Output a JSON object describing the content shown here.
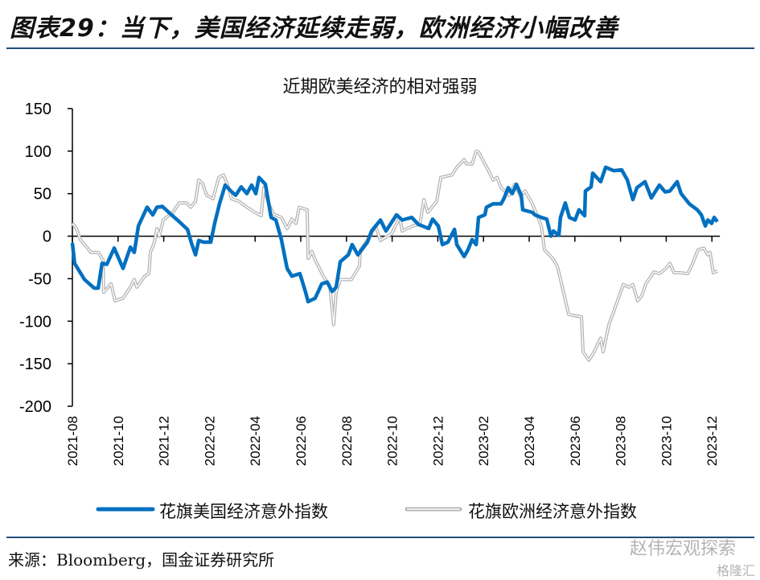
{
  "figure_title": "图表29：当下，美国经济延续走弱，欧洲经济小幅改善",
  "source": "来源：Bloomberg，国金证券研究所",
  "watermark": {
    "text": "赵伟宏观探索",
    "sub": "格隆汇"
  },
  "colors": {
    "us": "#0070c0",
    "eu": "#b4b4b4",
    "rule": "#1f4e79"
  },
  "chart_data": {
    "type": "line",
    "title": "近期欧美经济的相对强弱",
    "xlabel": "",
    "ylabel": "",
    "ylim": [
      -200,
      150
    ],
    "yticks": [
      "150",
      "100",
      "50",
      "0",
      "-50",
      "-100",
      "-150",
      "-200"
    ],
    "ytick_values": [
      150,
      100,
      50,
      0,
      -50,
      -100,
      -150,
      -200
    ],
    "x_unit": "months since 2021-08",
    "xlim": [
      0,
      28.35
    ],
    "xticks": [
      "2021-08",
      "2021-10",
      "2021-12",
      "2022-02",
      "2022-04",
      "2022-06",
      "2022-08",
      "2022-10",
      "2022-12",
      "2023-02",
      "2023-04",
      "2023-06",
      "2023-08",
      "2023-10",
      "2023-12"
    ],
    "legend_position": "bottom",
    "grid": false,
    "series": [
      {
        "name": "花旗美国经济意外指数",
        "x": [
          0,
          0.1,
          0.53,
          0.95,
          1.13,
          1.3,
          1.51,
          1.83,
          2.22,
          2.54,
          2.71,
          2.89,
          3.27,
          3.52,
          3.7,
          3.94,
          4.3,
          4.68,
          5.04,
          5.21,
          5.39,
          5.53,
          5.74,
          6.06,
          6.23,
          6.44,
          6.69,
          6.94,
          7.15,
          7.39,
          7.64,
          7.85,
          8.03,
          8.17,
          8.45,
          8.7,
          8.91,
          9.15,
          9.4,
          9.61,
          9.96,
          10.21,
          10.32,
          10.63,
          10.92,
          11.16,
          11.37,
          11.55,
          11.73,
          12.08,
          12.25,
          12.5,
          12.92,
          13.1,
          13.49,
          13.73,
          14.19,
          14.44,
          14.86,
          15.14,
          15.6,
          15.77,
          16.02,
          16.2,
          16.44,
          16.73,
          16.83,
          17.15,
          17.32,
          17.5,
          17.68,
          17.78,
          18.06,
          18.13,
          18.42,
          18.77,
          18.91,
          19.08,
          19.26,
          19.44,
          19.65,
          19.72,
          20.14,
          20.25,
          20.53,
          20.77,
          20.95,
          21.06,
          21.3,
          21.37,
          21.58,
          21.76,
          22.01,
          22.18,
          22.43,
          22.46,
          22.71,
          22.78,
          23.13,
          23.35,
          23.7,
          24.05,
          24.3,
          24.54,
          24.72,
          25.07,
          25.35,
          25.7,
          25.95,
          26.16,
          26.48,
          26.65,
          27.01,
          27.36,
          27.54,
          27.71,
          27.82,
          27.99,
          28.1,
          28.24
        ],
        "y": [
          -8,
          -32,
          -51,
          -61,
          -61,
          -32,
          -33,
          -14,
          -38,
          -13,
          -19,
          12,
          34,
          25,
          34,
          35,
          26,
          17,
          8,
          -8,
          -22,
          -5,
          -7,
          -7,
          15,
          38,
          60,
          53,
          48,
          58,
          50,
          60,
          50,
          69,
          61,
          22,
          19,
          -4,
          -38,
          -47,
          -44,
          -66,
          -77,
          -73,
          -56,
          -54,
          -65,
          -60,
          -30,
          -22,
          -10,
          -22,
          -7,
          6,
          19,
          6,
          25,
          19,
          22,
          14,
          9,
          20,
          12,
          -10,
          -7,
          8,
          -10,
          -24,
          -16,
          -4,
          -10,
          22,
          25,
          34,
          38,
          38,
          45,
          57,
          50,
          61,
          48,
          31,
          28,
          25,
          22,
          20,
          0,
          6,
          1,
          22,
          39,
          22,
          19,
          31,
          24,
          53,
          58,
          74,
          64,
          81,
          77,
          78,
          66,
          43,
          57,
          64,
          45,
          60,
          52,
          53,
          64,
          50,
          38,
          31,
          25,
          12,
          19,
          15,
          22,
          17
        ]
      },
      {
        "name": "花旗欧洲经济意外指数",
        "x": [
          0,
          0.18,
          0.35,
          0.63,
          0.81,
          1.13,
          1.34,
          1.37,
          1.69,
          1.87,
          2.22,
          2.54,
          2.71,
          2.82,
          3.17,
          3.35,
          3.42,
          3.59,
          3.7,
          3.8,
          3.98,
          4.4,
          4.68,
          5,
          5.18,
          5.39,
          5.53,
          5.7,
          5.88,
          6.16,
          6.41,
          6.62,
          6.8,
          6.97,
          7.29,
          7.64,
          7.99,
          8.27,
          8.38,
          8.56,
          8.8,
          9.15,
          9.4,
          9.61,
          9.79,
          9.93,
          10.28,
          10.32,
          10.49,
          10.63,
          10.99,
          11.27,
          11.44,
          11.55,
          11.73,
          12.22,
          12.57,
          12.61,
          13.03,
          13.27,
          13.49,
          13.98,
          14.33,
          14.44,
          14.89,
          15.21,
          15.39,
          15.56,
          15.95,
          16.13,
          16.62,
          16.83,
          17.15,
          17.25,
          17.5,
          17.68,
          17.78,
          18.2,
          18.42,
          18.59,
          18.77,
          19.12,
          19.37,
          19.61,
          19.82,
          20.14,
          20.53,
          20.67,
          21.02,
          21.23,
          21.48,
          21.73,
          22.29,
          22.36,
          22.61,
          22.82,
          23.13,
          23.24,
          23.49,
          23.66,
          24.12,
          24.37,
          24.54,
          24.75,
          24.93,
          25.11,
          25.46,
          25.7,
          25.99,
          26.16,
          26.34,
          26.58,
          26.94,
          27.11,
          27.39,
          27.64,
          27.82,
          27.92,
          28.06,
          28.24
        ],
        "y": [
          15,
          9,
          -4,
          -13,
          -19,
          -19,
          -28,
          -66,
          -56,
          -76,
          -73,
          -60,
          -51,
          -60,
          -47,
          -44,
          -19,
          -7,
          9,
          0,
          19,
          28,
          39,
          39,
          34,
          41,
          66,
          62,
          48,
          44,
          69,
          72,
          60,
          44,
          41,
          34,
          28,
          24,
          57,
          41,
          26,
          22,
          9,
          20,
          15,
          34,
          31,
          -26,
          -18,
          -28,
          -47,
          -59,
          -104,
          -66,
          -51,
          -51,
          -35,
          -16,
          0,
          12,
          -5,
          3,
          22,
          6,
          12,
          14,
          43,
          28,
          41,
          69,
          72,
          81,
          90,
          85,
          85,
          100,
          99,
          78,
          66,
          69,
          57,
          48,
          61,
          47,
          53,
          38,
          12,
          -16,
          -26,
          -35,
          -63,
          -92,
          -95,
          -136,
          -146,
          -137,
          -120,
          -136,
          -104,
          -92,
          -57,
          -60,
          -57,
          -76,
          -70,
          -56,
          -42,
          -44,
          -38,
          -32,
          -43,
          -43,
          -44,
          -35,
          -16,
          -14,
          -22,
          -19,
          -43,
          -41
        ]
      }
    ]
  }
}
